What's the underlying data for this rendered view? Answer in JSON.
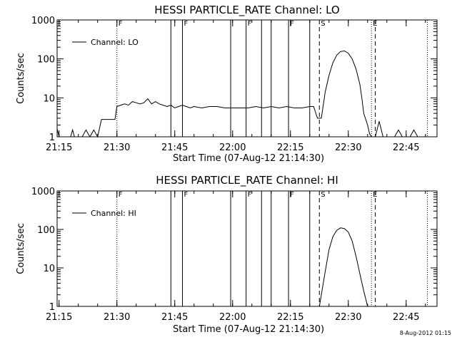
{
  "chart_data": [
    {
      "type": "line",
      "title": "HESSI PARTICLE_RATE Channel: LO",
      "xlabel": "Start Time (07-Aug-12 21:14:30)",
      "ylabel": "Counts/sec",
      "yscale": "log",
      "ylim": [
        1,
        1000
      ],
      "xlim": [
        "21:14:30",
        "22:53:00"
      ],
      "x_tick_labels": [
        "21:15",
        "21:30",
        "21:45",
        "22:00",
        "22:15",
        "22:30",
        "22:45"
      ],
      "y_tick_labels": [
        "1",
        "10",
        "100",
        "1000"
      ],
      "grid": false,
      "legend": {
        "placement": "top-left",
        "entries": [
          "Channel: LO"
        ]
      },
      "series": [
        {
          "name": "Channel: LO",
          "x": [
            "21:14:30",
            "21:15:00",
            "21:15:30",
            "21:16:00",
            "21:17:00",
            "21:18:00",
            "21:18:30",
            "21:19:00",
            "21:19:30",
            "21:20:00",
            "21:21:00",
            "21:22:00",
            "21:23:00",
            "21:24:00",
            "21:25:00",
            "21:26:00",
            "21:27:00",
            "21:28:00",
            "21:29:00",
            "21:29:30",
            "21:30:00",
            "21:31:00",
            "21:32:00",
            "21:33:00",
            "21:34:00",
            "21:35:00",
            "21:36:00",
            "21:37:00",
            "21:38:00",
            "21:39:00",
            "21:40:00",
            "21:41:00",
            "21:42:00",
            "21:43:00",
            "21:44:00",
            "21:45:00",
            "21:46:00",
            "21:47:00",
            "21:48:00",
            "21:49:00",
            "21:50:00",
            "21:52:00",
            "21:54:00",
            "21:56:00",
            "21:58:00",
            "22:00:00",
            "22:02:00",
            "22:04:00",
            "22:06:00",
            "22:08:00",
            "22:10:00",
            "22:12:00",
            "22:14:00",
            "22:16:00",
            "22:18:00",
            "22:20:00",
            "22:21:00",
            "22:22:00",
            "22:23:00",
            "22:24:00",
            "22:25:00",
            "22:26:00",
            "22:27:00",
            "22:28:00",
            "22:29:00",
            "22:30:00",
            "22:31:00",
            "22:32:00",
            "22:33:00",
            "22:33:30",
            "22:34:00",
            "22:35:00",
            "22:35:30",
            "22:36:00",
            "22:37:00",
            "22:38:00",
            "22:39:00",
            "22:40:00",
            "22:41:00",
            "22:42:00",
            "22:43:00",
            "22:44:00",
            "22:45:00",
            "22:46:00",
            "22:47:00",
            "22:48:00",
            "22:49:00",
            "22:50:00"
          ],
          "y": [
            1.6,
            1,
            1,
            1,
            1,
            1,
            1.5,
            1,
            1,
            1,
            1,
            1.5,
            1,
            1.5,
            1,
            2.8,
            2.8,
            2.8,
            2.8,
            2.8,
            6,
            6.5,
            7,
            6.5,
            8,
            7.5,
            7,
            7.5,
            9.5,
            7,
            8,
            7,
            6.5,
            6,
            6.5,
            5.5,
            6,
            6.5,
            6,
            5.5,
            6,
            5.5,
            6,
            6,
            5.5,
            5.5,
            5.5,
            5.5,
            6,
            5.5,
            6,
            5.5,
            6,
            5.5,
            5.5,
            6,
            6,
            3,
            3,
            14,
            38,
            80,
            125,
            155,
            160,
            140,
            100,
            55,
            22,
            10,
            4,
            2,
            1.2,
            1,
            1,
            2.5,
            1,
            1,
            1,
            1,
            1.5,
            1,
            1,
            1,
            1.5,
            1,
            1,
            1
          ]
        }
      ],
      "annotations": [
        {
          "x": "21:30:00",
          "style": "dotted",
          "label": "F"
        },
        {
          "x": "21:44:00",
          "style": "solid",
          "label": ""
        },
        {
          "x": "21:47:00",
          "style": "solid",
          "label": "F"
        },
        {
          "x": "21:59:30",
          "style": "solid",
          "label": ""
        },
        {
          "x": "22:03:30",
          "style": "solid",
          "label": "F"
        },
        {
          "x": "22:07:30",
          "style": "solid",
          "label": ""
        },
        {
          "x": "22:10:00",
          "style": "solid",
          "label": ""
        },
        {
          "x": "22:14:30",
          "style": "solid",
          "label": "F"
        },
        {
          "x": "22:20:00",
          "style": "solid",
          "label": ""
        },
        {
          "x": "22:22:30",
          "style": "dashed",
          "label": "S"
        },
        {
          "x": "22:36:00",
          "style": "dotted",
          "label": "E"
        },
        {
          "x": "22:37:00",
          "style": "dashed",
          "label": ""
        },
        {
          "x": "22:50:30",
          "style": "dotted",
          "label": ""
        }
      ]
    },
    {
      "type": "line",
      "title": "HESSI PARTICLE_RATE Channel: HI",
      "xlabel": "Start Time (07-Aug-12 21:14:30)",
      "ylabel": "Counts/sec",
      "yscale": "log",
      "ylim": [
        1,
        1000
      ],
      "xlim": [
        "21:14:30",
        "22:53:00"
      ],
      "x_tick_labels": [
        "21:15",
        "21:30",
        "21:45",
        "22:00",
        "22:15",
        "22:30",
        "22:45"
      ],
      "y_tick_labels": [
        "1",
        "10",
        "100",
        "1000"
      ],
      "grid": false,
      "legend": {
        "placement": "top-left",
        "entries": [
          "Channel: HI"
        ]
      },
      "series": [
        {
          "name": "Channel: HI",
          "x": [
            "22:22:30",
            "22:23:00",
            "22:24:00",
            "22:25:00",
            "22:26:00",
            "22:27:00",
            "22:28:00",
            "22:29:00",
            "22:30:00",
            "22:31:00",
            "22:32:00",
            "22:33:00",
            "22:34:00",
            "22:35:00"
          ],
          "y": [
            1,
            2,
            8,
            30,
            65,
            95,
            110,
            105,
            85,
            50,
            20,
            7,
            2.5,
            1
          ]
        }
      ],
      "annotations": [
        {
          "x": "21:30:00",
          "style": "dotted",
          "label": "F"
        },
        {
          "x": "21:44:00",
          "style": "solid",
          "label": ""
        },
        {
          "x": "21:47:00",
          "style": "solid",
          "label": "F"
        },
        {
          "x": "21:59:30",
          "style": "solid",
          "label": ""
        },
        {
          "x": "22:03:30",
          "style": "solid",
          "label": "F"
        },
        {
          "x": "22:07:30",
          "style": "solid",
          "label": ""
        },
        {
          "x": "22:10:00",
          "style": "solid",
          "label": ""
        },
        {
          "x": "22:14:30",
          "style": "solid",
          "label": "F"
        },
        {
          "x": "22:20:00",
          "style": "solid",
          "label": ""
        },
        {
          "x": "22:22:30",
          "style": "dashed",
          "label": "S"
        },
        {
          "x": "22:36:00",
          "style": "dotted",
          "label": "E"
        },
        {
          "x": "22:37:00",
          "style": "dashed",
          "label": ""
        },
        {
          "x": "22:50:30",
          "style": "dotted",
          "label": ""
        }
      ]
    }
  ],
  "footer": {
    "timestamp": "8-Aug-2012 01:15"
  }
}
